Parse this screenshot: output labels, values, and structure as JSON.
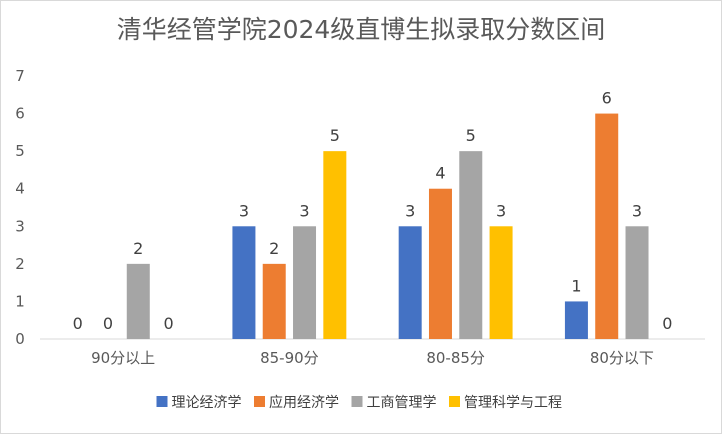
{
  "chart_data": {
    "type": "bar",
    "title": "清华经管学院2024级直博生拟录取分数区间",
    "categories": [
      "90分以上",
      "85-90分",
      "80-85分",
      "80分以下"
    ],
    "series": [
      {
        "name": "理论经济学",
        "color": "#4472c4",
        "values": [
          0,
          3,
          3,
          1
        ]
      },
      {
        "name": "应用经济学",
        "color": "#ed7d31",
        "values": [
          0,
          2,
          4,
          6
        ]
      },
      {
        "name": "工商管理学",
        "color": "#a5a5a5",
        "values": [
          2,
          3,
          5,
          3
        ]
      },
      {
        "name": "管理科学与工程",
        "color": "#ffc000",
        "values": [
          0,
          5,
          3,
          0
        ]
      }
    ],
    "ylim": [
      0,
      7
    ],
    "yticks": [
      0,
      1,
      2,
      3,
      4,
      5,
      6,
      7
    ],
    "grid": false,
    "legend_position": "bottom",
    "data_labels": true
  }
}
